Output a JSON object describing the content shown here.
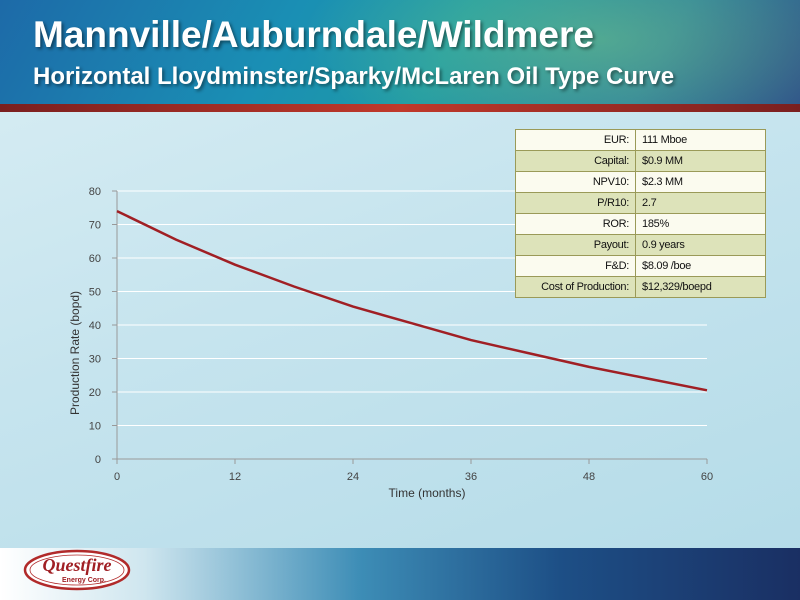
{
  "slide": {
    "title": "Mannville/Auburndale/Wildmere",
    "subtitle": "Horizontal Lloydminster/Sparky/McLaren Oil Type Curve"
  },
  "metrics": [
    {
      "label": "EUR:",
      "value": "111 Mboe"
    },
    {
      "label": "Capital:",
      "value": "$0.9 MM"
    },
    {
      "label": "NPV10:",
      "value": "$2.3 MM"
    },
    {
      "label": "P/R10:",
      "value": "2.7"
    },
    {
      "label": "ROR:",
      "value": "185%"
    },
    {
      "label": "Payout:",
      "value": "0.9 years"
    },
    {
      "label": "F&D:",
      "value": "$8.09 /boe"
    },
    {
      "label": "Cost of Production:",
      "value": "$12,329/boepd"
    }
  ],
  "logo": {
    "brand": "Questfire",
    "tagline": "Energy Corp."
  },
  "colors": {
    "series_line": "#a01f24",
    "header_accent": "#c0392b"
  },
  "chart_data": {
    "type": "line",
    "title": "",
    "xlabel": "Time (months)",
    "ylabel": "Production Rate (bopd)",
    "xlim": [
      0,
      60
    ],
    "ylim": [
      0,
      80
    ],
    "xticks": [
      0,
      12,
      24,
      36,
      48,
      60
    ],
    "yticks": [
      0,
      10,
      20,
      30,
      40,
      50,
      60,
      70,
      80
    ],
    "grid": "horizontal",
    "series": [
      {
        "x": [
          0,
          6,
          12,
          18,
          24,
          30,
          36,
          42,
          48,
          54,
          60
        ],
        "y": [
          74,
          65.5,
          58,
          51.5,
          45.5,
          40.5,
          35.5,
          31.5,
          27.5,
          24,
          20.5
        ]
      }
    ]
  }
}
